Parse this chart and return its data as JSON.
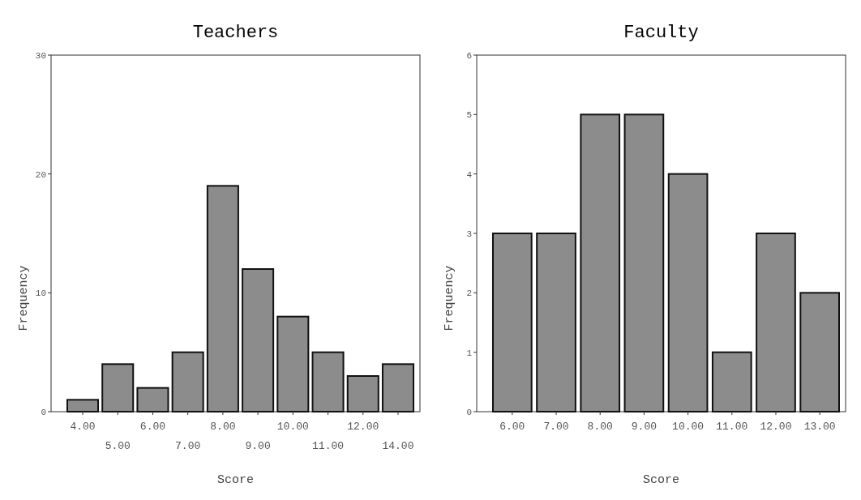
{
  "chart_data": [
    {
      "type": "bar",
      "title": "Teachers",
      "xlabel": "Score",
      "ylabel": "Frequency",
      "categories": [
        "4.00",
        "5.00",
        "6.00",
        "7.00",
        "8.00",
        "9.00",
        "10.00",
        "11.00",
        "12.00",
        "14.00"
      ],
      "values": [
        1,
        4,
        2,
        5,
        19,
        12,
        8,
        5,
        3,
        4
      ],
      "color": "#8c8c8c",
      "ylim": [
        0,
        30
      ],
      "yticks": [
        0,
        10,
        20,
        30
      ]
    },
    {
      "type": "bar",
      "title": "Faculty",
      "xlabel": "Score",
      "ylabel": "Frequency",
      "categories": [
        "6.00",
        "7.00",
        "8.00",
        "9.00",
        "10.00",
        "11.00",
        "12.00",
        "13.00"
      ],
      "values": [
        3,
        3,
        5,
        5,
        4,
        1,
        3,
        2
      ],
      "color": "#8c8c8c",
      "ylim": [
        0,
        6
      ],
      "yticks": [
        0,
        1,
        2,
        3,
        4,
        5,
        6
      ]
    }
  ]
}
